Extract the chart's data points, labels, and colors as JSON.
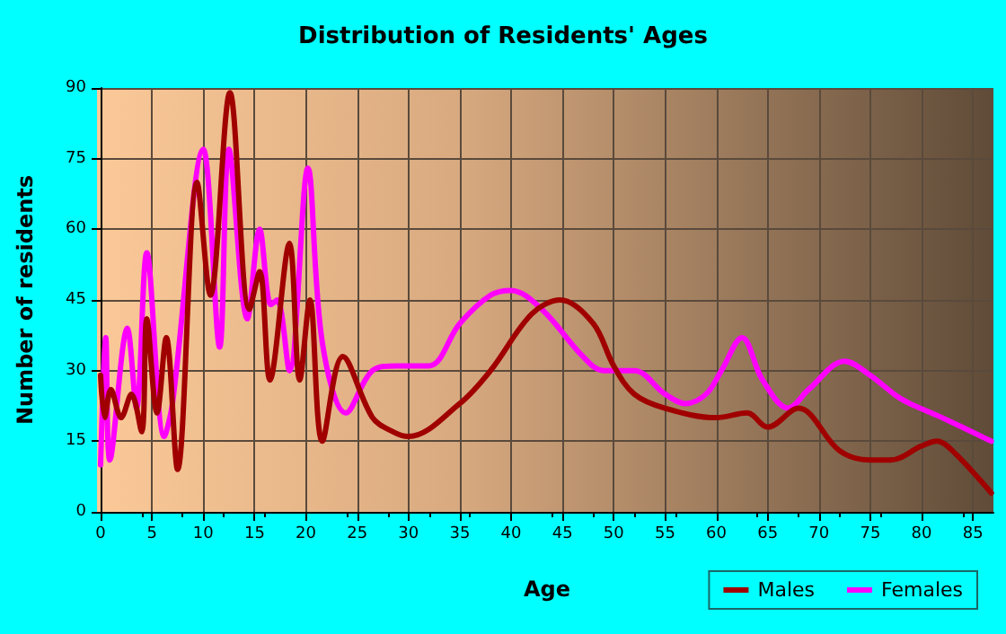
{
  "chart_data": {
    "type": "line",
    "title": "Distribution of Residents' Ages",
    "xlabel": "Age",
    "ylabel": "Number of residents",
    "xlim": [
      0,
      87
    ],
    "xticks": [
      0,
      5,
      10,
      15,
      20,
      25,
      30,
      35,
      40,
      45,
      50,
      55,
      60,
      65,
      70,
      75,
      80,
      85
    ],
    "ylim": [
      0,
      90
    ],
    "yticks": [
      0,
      15,
      30,
      45,
      60,
      75,
      90
    ],
    "grid": true,
    "legend": "bottom right",
    "marker": "none",
    "series": [
      {
        "name": "Males",
        "color": "#a00000",
        "x": [
          0,
          0.4,
          1,
          2,
          3,
          4,
          4.5,
          5.5,
          6.4,
          7.5,
          9.4,
          10.7,
          12.6,
          14.5,
          15.5,
          16.5,
          18.4,
          19.4,
          20.4,
          21.6,
          23.6,
          26.5,
          28.5,
          30,
          35,
          38,
          42,
          44.8,
          48,
          50,
          52,
          55,
          60,
          63,
          65,
          68,
          72,
          75,
          77,
          80,
          81.5,
          83,
          86.8
        ],
        "values": [
          29,
          20,
          26,
          20,
          25,
          17,
          41,
          21,
          37,
          9,
          70,
          46,
          89,
          43,
          51,
          28,
          57,
          28,
          45,
          15,
          33,
          20,
          17,
          16,
          23,
          30,
          42,
          45,
          40,
          31,
          25,
          22,
          20,
          21,
          18,
          22,
          13,
          11,
          11,
          14,
          15,
          13,
          4
        ]
      },
      {
        "name": "Females",
        "color": "#ff00ff",
        "x": [
          0,
          0.5,
          0.9,
          2.6,
          3.5,
          4.5,
          6.2,
          7,
          10,
          11.6,
          12.5,
          14.3,
          15.5,
          16.6,
          17.2,
          18.4,
          20.2,
          21.6,
          23.9,
          26.5,
          28.8,
          32,
          35,
          38,
          40,
          43,
          47,
          49,
          52,
          55,
          57,
          59,
          60.5,
          62.5,
          64.5,
          67,
          69,
          72.5,
          75,
          78,
          82,
          86.8
        ],
        "values": [
          10,
          37,
          11,
          39,
          22,
          55,
          16,
          23,
          77,
          35,
          77,
          41,
          60,
          44,
          45,
          30,
          73,
          36,
          21,
          30,
          31,
          31,
          40,
          46,
          47,
          43,
          33,
          30,
          30,
          25,
          23,
          25,
          30,
          37,
          28,
          22,
          26,
          32,
          29,
          24,
          20,
          15
        ]
      }
    ]
  }
}
